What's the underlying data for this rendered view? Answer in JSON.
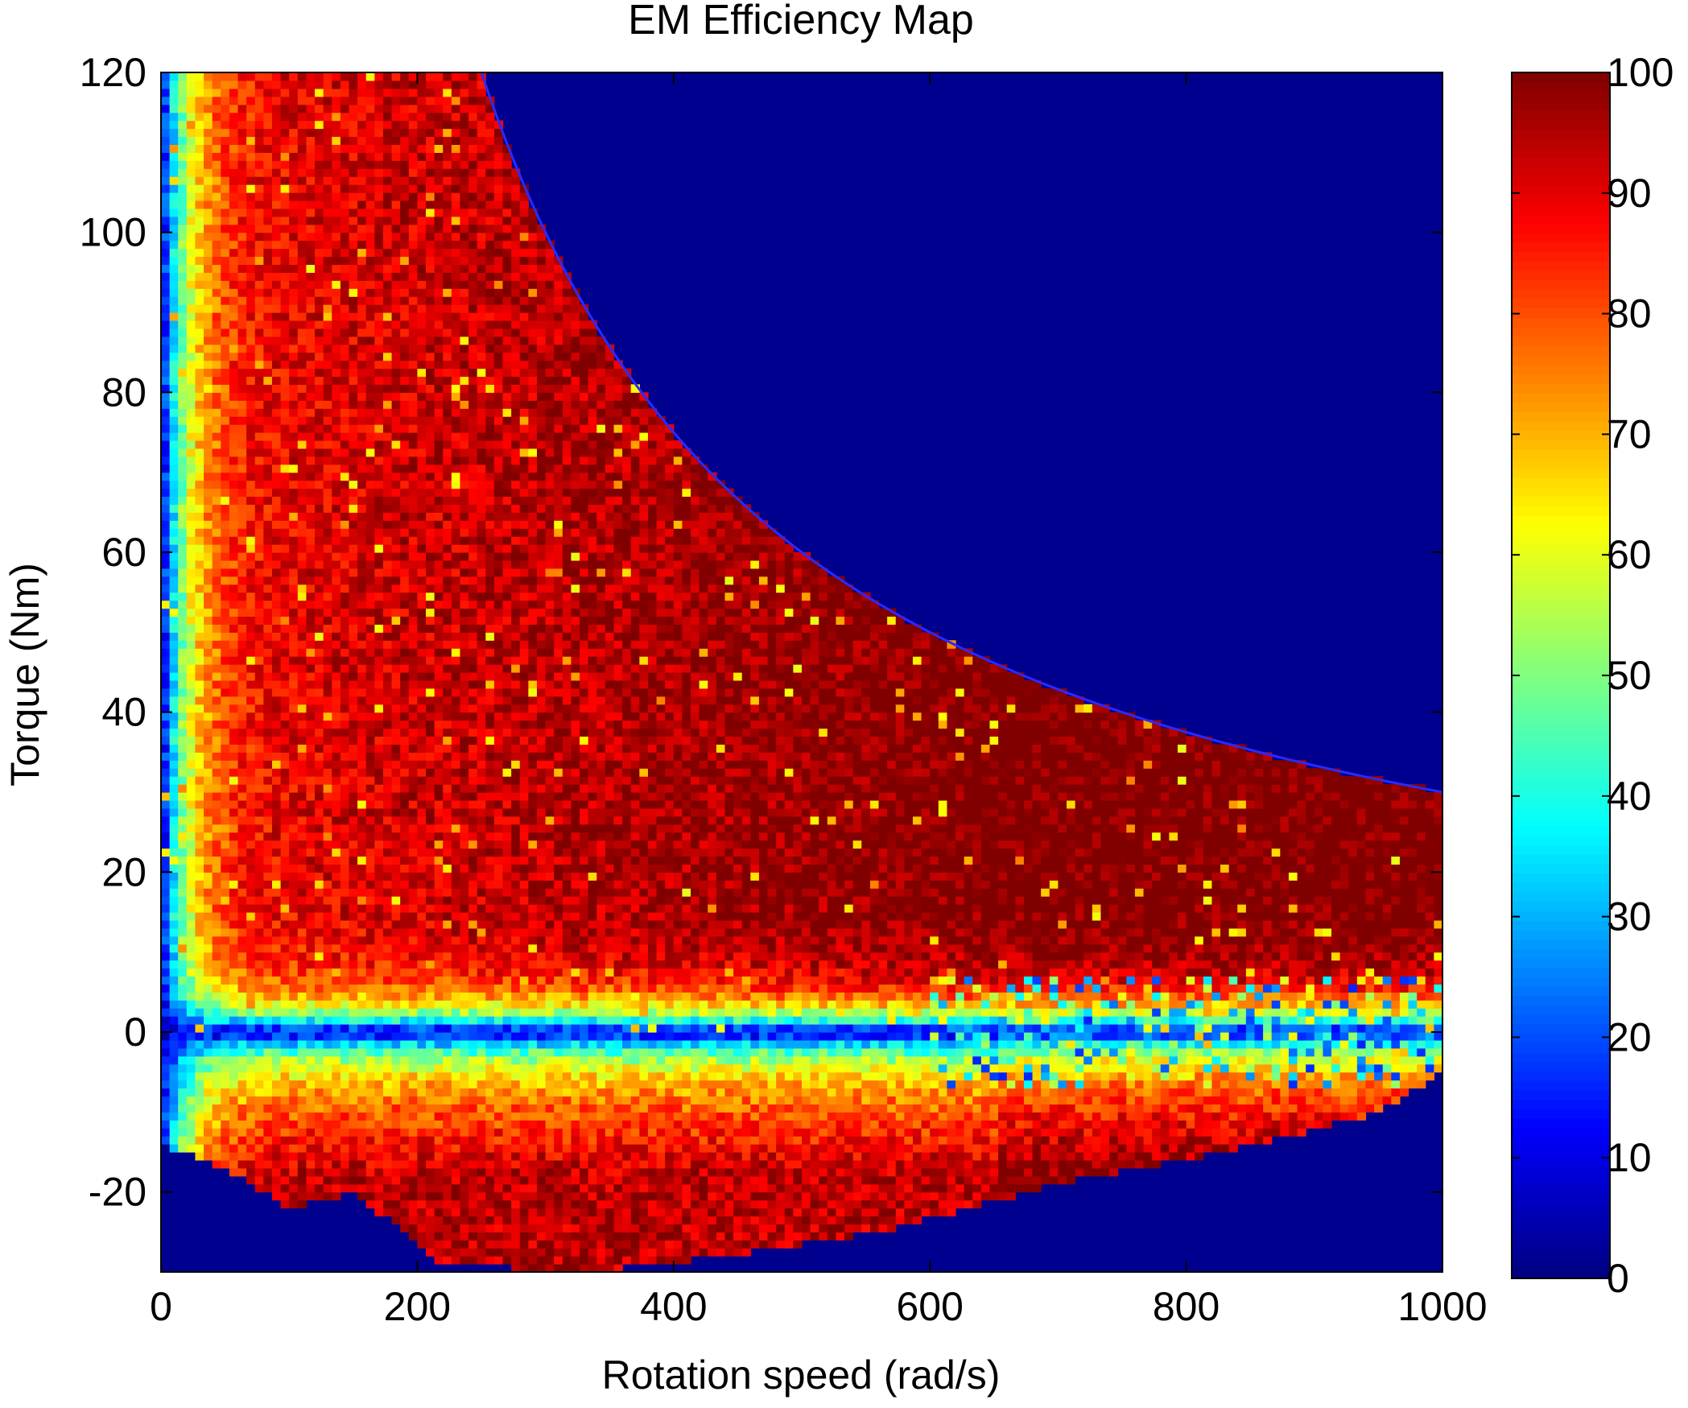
{
  "chart_data": {
    "type": "heatmap",
    "title": "EM Efficiency Map",
    "xlabel": "Rotation speed (rad/s)",
    "ylabel": "Torque (Nm)",
    "xlim": [
      0,
      1000
    ],
    "ylim": [
      -30,
      120
    ],
    "xticks": [
      0,
      200,
      400,
      600,
      800,
      1000
    ],
    "yticks": [
      -20,
      0,
      20,
      40,
      60,
      80,
      100,
      120
    ],
    "colorbar": {
      "range": [
        0,
        100
      ],
      "ticks": [
        0,
        10,
        20,
        30,
        40,
        50,
        60,
        70,
        80,
        90,
        100
      ],
      "colormap": "jet"
    },
    "background_color": "#00008f",
    "max_torque_curve": {
      "base_speed": 250,
      "max_torque": 120,
      "torque_at_1000": 30,
      "color": "#2a2aff"
    },
    "regen_boundary": [
      [
        0,
        -14
      ],
      [
        50,
        -17
      ],
      [
        100,
        -22
      ],
      [
        150,
        -20
      ],
      [
        220,
        -29
      ],
      [
        330,
        -30
      ],
      [
        440,
        -28
      ],
      [
        560,
        -25
      ],
      [
        700,
        -19
      ],
      [
        830,
        -15
      ],
      [
        950,
        -10
      ],
      [
        1000,
        -5
      ]
    ],
    "efficiency_zones": [
      {
        "region": "near zero speed (0-20 rad/s)",
        "efficiency_range": [
          20,
          60
        ]
      },
      {
        "region": "near zero torque",
        "efficiency_range": [
          5,
          40
        ]
      },
      {
        "region": "low regen torque (-2 to -10 Nm)",
        "efficiency_range": [
          60,
          75
        ]
      },
      {
        "region": "mid speed, mid torque",
        "efficiency_range": [
          88,
          97
        ]
      },
      {
        "region": "low speed, high torque",
        "efficiency_range": [
          82,
          92
        ]
      }
    ]
  }
}
